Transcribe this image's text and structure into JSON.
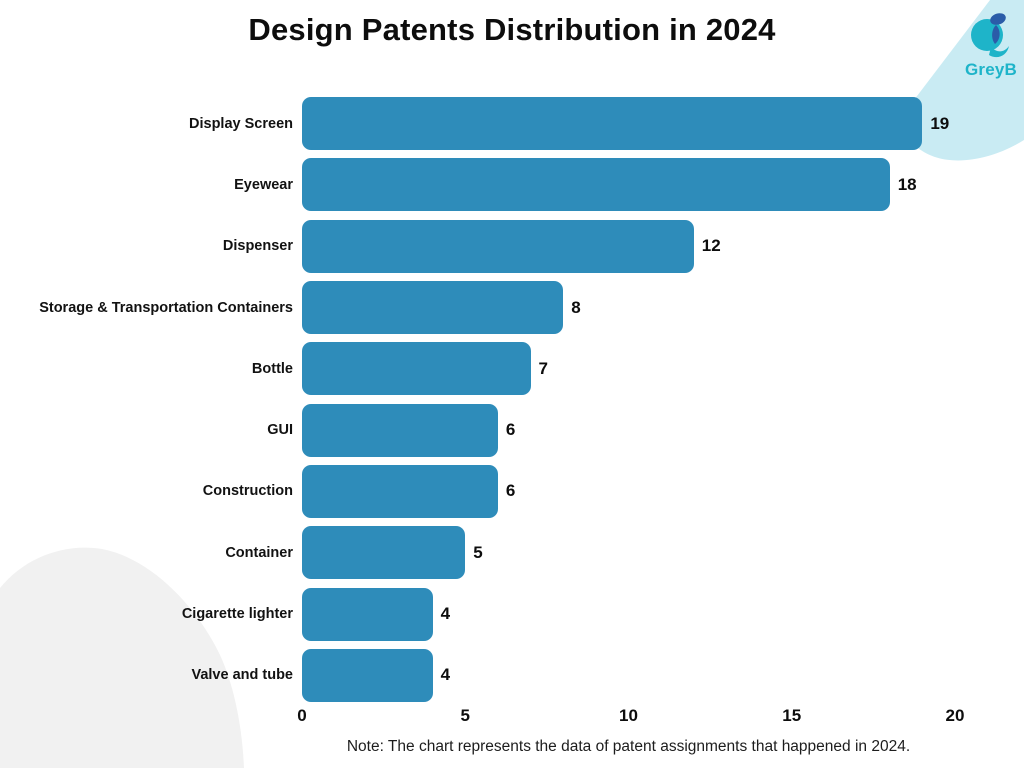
{
  "header": {
    "title": "Design Patents Distribution in 2024"
  },
  "logo": {
    "name": "GreyB"
  },
  "footer": {
    "note": "Note: The chart represents the data of patent assignments that happened in 2024."
  },
  "colors": {
    "bar": "#2e8cba",
    "corner_blob": "#c9ebf3",
    "gray_blob": "#f1f1f1",
    "logo_teal": "#1eb4c9",
    "logo_navy": "#2b5ca8",
    "text": "#0d0d0d"
  },
  "chart_data": {
    "type": "bar",
    "orientation": "horizontal",
    "title": "Design Patents Distribution in 2024",
    "categories": [
      "Display Screen",
      "Eyewear",
      "Dispenser",
      "Storage & Transportation Containers",
      "Bottle",
      "GUI",
      "Construction",
      "Container",
      "Cigarette lighter",
      "Valve and tube"
    ],
    "values": [
      19,
      18,
      12,
      8,
      7,
      6,
      6,
      5,
      4,
      4
    ],
    "xlabel": "",
    "ylabel": "",
    "xlim": [
      0,
      20
    ],
    "x_ticks": [
      0,
      5,
      10,
      15,
      20
    ],
    "grid": false,
    "legend": false,
    "value_labels": true,
    "bar_color": "#2e8cba"
  }
}
